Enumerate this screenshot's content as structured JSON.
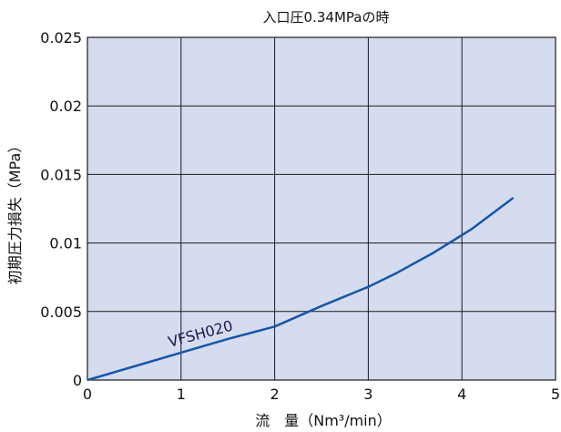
{
  "chart_data": {
    "type": "line",
    "title": "入口圧0.34MPaの時",
    "xlabel": "流　量（Nm³/min）",
    "ylabel": "初期圧力損失（MPa）",
    "xlim": [
      0,
      5
    ],
    "ylim": [
      0,
      0.025
    ],
    "x_ticks": [
      "0",
      "1",
      "2",
      "3",
      "4",
      "5"
    ],
    "y_ticks": [
      "0",
      "0.005",
      "0.01",
      "0.015",
      "0.02",
      "0.025"
    ],
    "grid": true,
    "series": [
      {
        "name": "VFSH020",
        "x": [
          0,
          0.5,
          1,
          1.5,
          2,
          2.5,
          3,
          3.3,
          3.7,
          4.1,
          4.55
        ],
        "y": [
          0,
          0.001,
          0.002,
          0.003,
          0.0039,
          0.0054,
          0.0068,
          0.0078,
          0.0093,
          0.011,
          0.0133
        ]
      }
    ],
    "colors": {
      "plot_background": "#d6dcef",
      "grid": "#1a1a1a",
      "line": "#1557a8"
    }
  }
}
